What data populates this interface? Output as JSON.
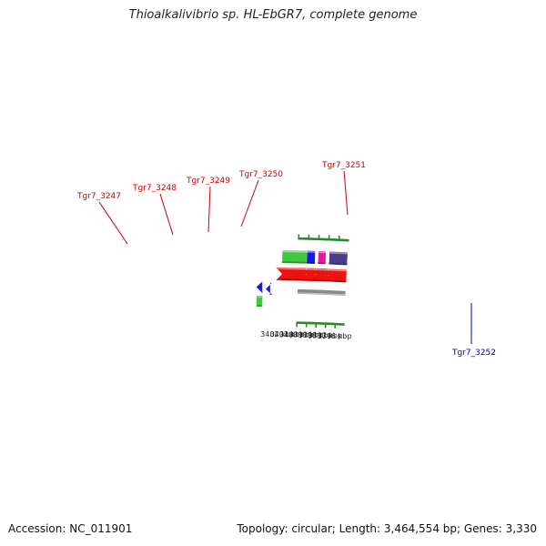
{
  "title": "Thioalkalivibrio sp. HL-EbGR7, complete genome",
  "accession": "Accession: NC_011901",
  "topology": "Topology: circular; Length: 3,464,554 bp; Genes: 3,330",
  "colors": {
    "backbone": "#8a8a8a",
    "tick": "#2a8a2a",
    "cds": "#ee1111",
    "label_forward": "#cc0000",
    "label_reverse": "#0000bb",
    "purple": "#4d3b8c",
    "pink": "#e8189c",
    "blue": "#1a1ae8",
    "green": "#3ec93e"
  },
  "scale_labels": [
    {
      "text": "3396 kbp"
    },
    {
      "text": "3397 kbp"
    },
    {
      "text": "3398 kbp"
    },
    {
      "text": "3399 kbp"
    },
    {
      "text": "3400 kbp"
    },
    {
      "text": "3401 kbp"
    },
    {
      "text": "3402 kbp"
    }
  ],
  "gene_labels": [
    {
      "text": "Tgr7_3247",
      "strand": "forward"
    },
    {
      "text": "Tgr7_3248",
      "strand": "forward"
    },
    {
      "text": "Tgr7_3249",
      "strand": "forward"
    },
    {
      "text": "Tgr7_3250",
      "strand": "forward"
    },
    {
      "text": "Tgr7_3251",
      "strand": "forward"
    },
    {
      "text": "Tgr7_3252",
      "strand": "reverse"
    }
  ]
}
